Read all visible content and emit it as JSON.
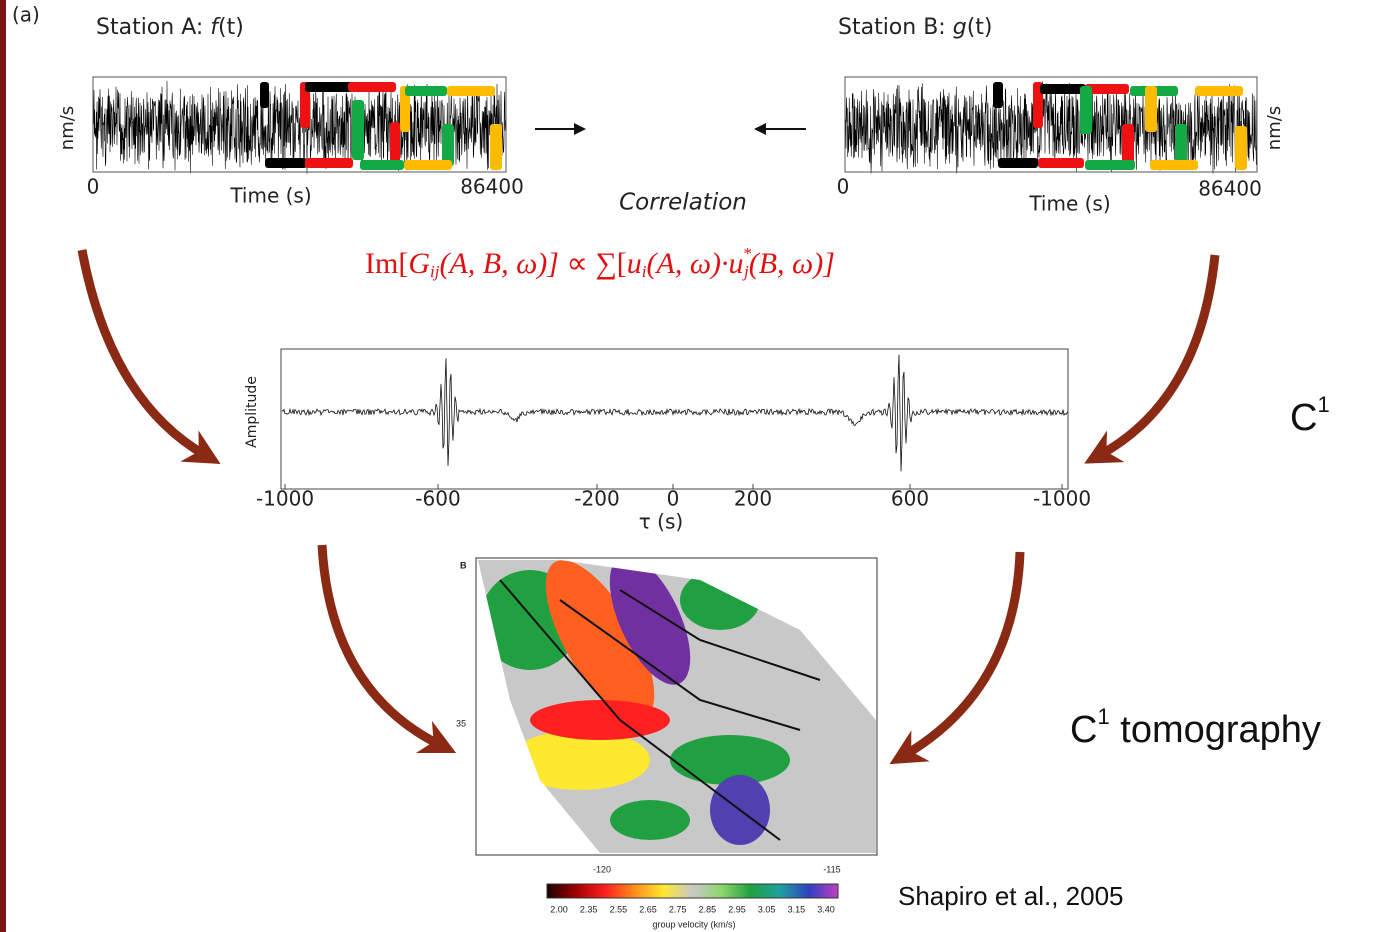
{
  "panel_label": "(a)",
  "station_a": {
    "title_prefix": "Station A: ",
    "title_func": "f",
    "title_arg": "(t)",
    "y_label": "nm/s",
    "x_start": "0",
    "x_end": "86400",
    "x_label": "Time (s)"
  },
  "station_b": {
    "title_prefix": "Station B: ",
    "title_func": "g",
    "title_arg": "(t)",
    "y_label": "nm/s",
    "x_start": "0",
    "x_end": "86400",
    "x_label": "Time (s)"
  },
  "correlation_label": "Correlation",
  "formula": {
    "lhs": "Im[",
    "g": "G",
    "g_sub": "ij",
    "g_args": "(A, B, ω)]",
    "op": " ∝ ∑[",
    "u1": "u",
    "u1_sub": "i",
    "u1_args": "(A, ω)·",
    "u2": "u",
    "u2_sup": "*",
    "u2_sub": "j",
    "u2_args": "(B, ω)]"
  },
  "cross_correlation": {
    "y_label": "Amplitude",
    "x_ticks": [
      "-1000",
      "-600",
      "-200",
      "0",
      "200",
      "600",
      "-1000"
    ],
    "x_label": "τ (s)",
    "side_label": "C",
    "side_sup": "1"
  },
  "map": {
    "panel": "B",
    "lat_label": "35",
    "lon_labels": [
      "-120",
      "-115"
    ],
    "colorbar_ticks": [
      "2.00",
      "2.35",
      "2.55",
      "2.65",
      "2.75",
      "2.85",
      "2.95",
      "3.05",
      "3.15",
      "3.40"
    ],
    "colorbar_label": "group velocity (km/s)",
    "side_label_c": "C",
    "side_label_sup": "1",
    "side_label_rest": " tomography"
  },
  "citation": "Shapiro et al., 2005"
}
